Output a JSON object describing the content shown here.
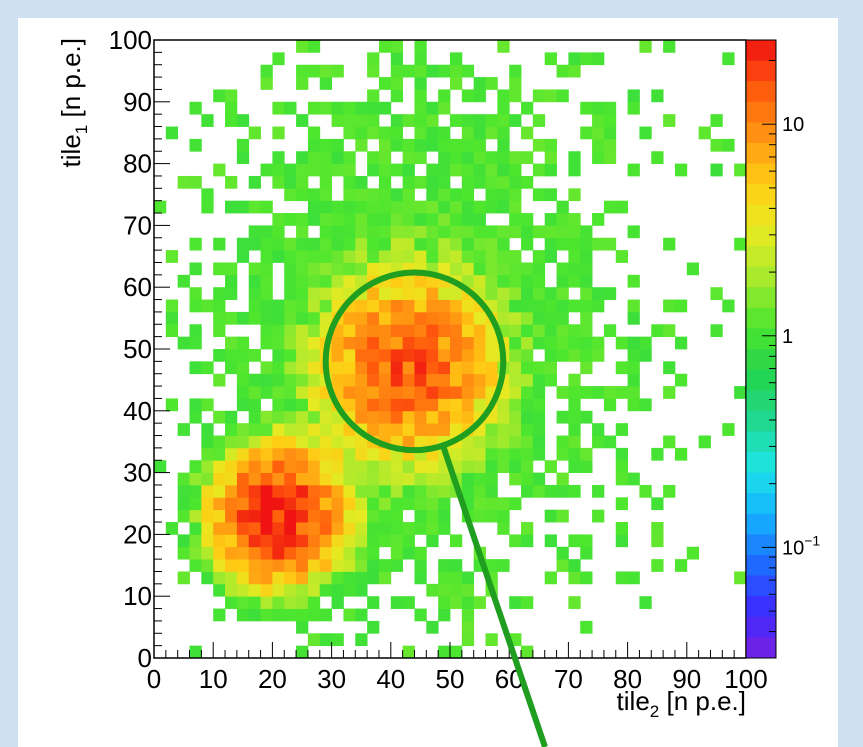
{
  "chart_data": {
    "type": "heatmap",
    "title": "",
    "xlabel": {
      "base": "tile",
      "sub": "2",
      "unit": " [n  p.e.]"
    },
    "ylabel": {
      "base": "tile",
      "sub": "1",
      "unit": " [n  p.e.]"
    },
    "xlim": [
      0,
      100
    ],
    "ylim": [
      0,
      100
    ],
    "bin_width": 2,
    "x_tick_labels": [
      "0",
      "10",
      "20",
      "30",
      "40",
      "50",
      "60",
      "70",
      "80",
      "90",
      "100"
    ],
    "y_tick_labels": [
      "0",
      "10",
      "20",
      "30",
      "40",
      "50",
      "60",
      "70",
      "80",
      "90",
      "100"
    ],
    "colorbar": {
      "scale": "log",
      "range": [
        0.03,
        25
      ],
      "tick_labels": [
        {
          "value": 10,
          "text": "10"
        },
        {
          "value": 1,
          "text": "1"
        },
        {
          "value": 0.1,
          "text": "10",
          "sup": "−1"
        }
      ]
    },
    "clusters": [
      {
        "center": [
          21,
          23
        ],
        "peak_count": 25
      },
      {
        "center": [
          43,
          47
        ],
        "peak_count": 15
      }
    ],
    "annotation": {
      "shape": "circle",
      "center": [
        44,
        48
      ],
      "radius": 15,
      "color": "#1f9e1f"
    }
  }
}
